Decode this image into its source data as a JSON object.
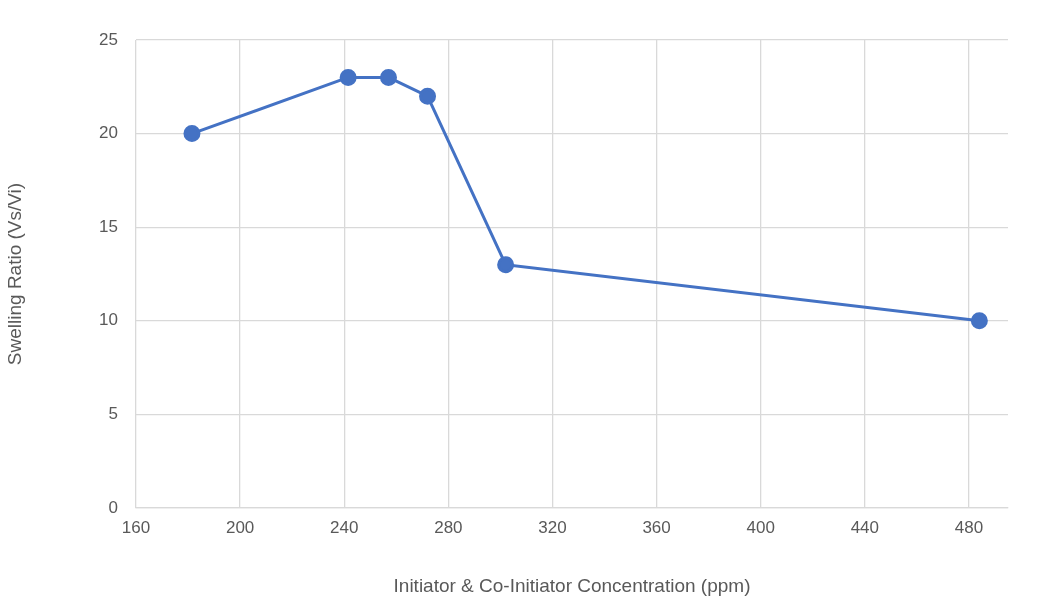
{
  "chart_data": {
    "type": "line",
    "xlabel": "Initiator & Co-Initiator Concentration (ppm)",
    "ylabel": "Swelling Ratio (Vs/Vi)",
    "x": [
      181.5,
      241.5,
      257,
      272,
      302,
      484
    ],
    "series": [
      {
        "color": "#4472c4",
        "values": [
          20,
          23,
          23,
          22,
          13,
          10
        ]
      }
    ],
    "xlim": [
      160,
      495
    ],
    "xticks": [
      160,
      200,
      240,
      280,
      320,
      360,
      400,
      440,
      480
    ],
    "ylim": [
      0,
      25
    ],
    "yticks": [
      0,
      5,
      10,
      15,
      20,
      25
    ],
    "grid": true,
    "legend": false,
    "marker": "circle",
    "line_style": "solid"
  }
}
